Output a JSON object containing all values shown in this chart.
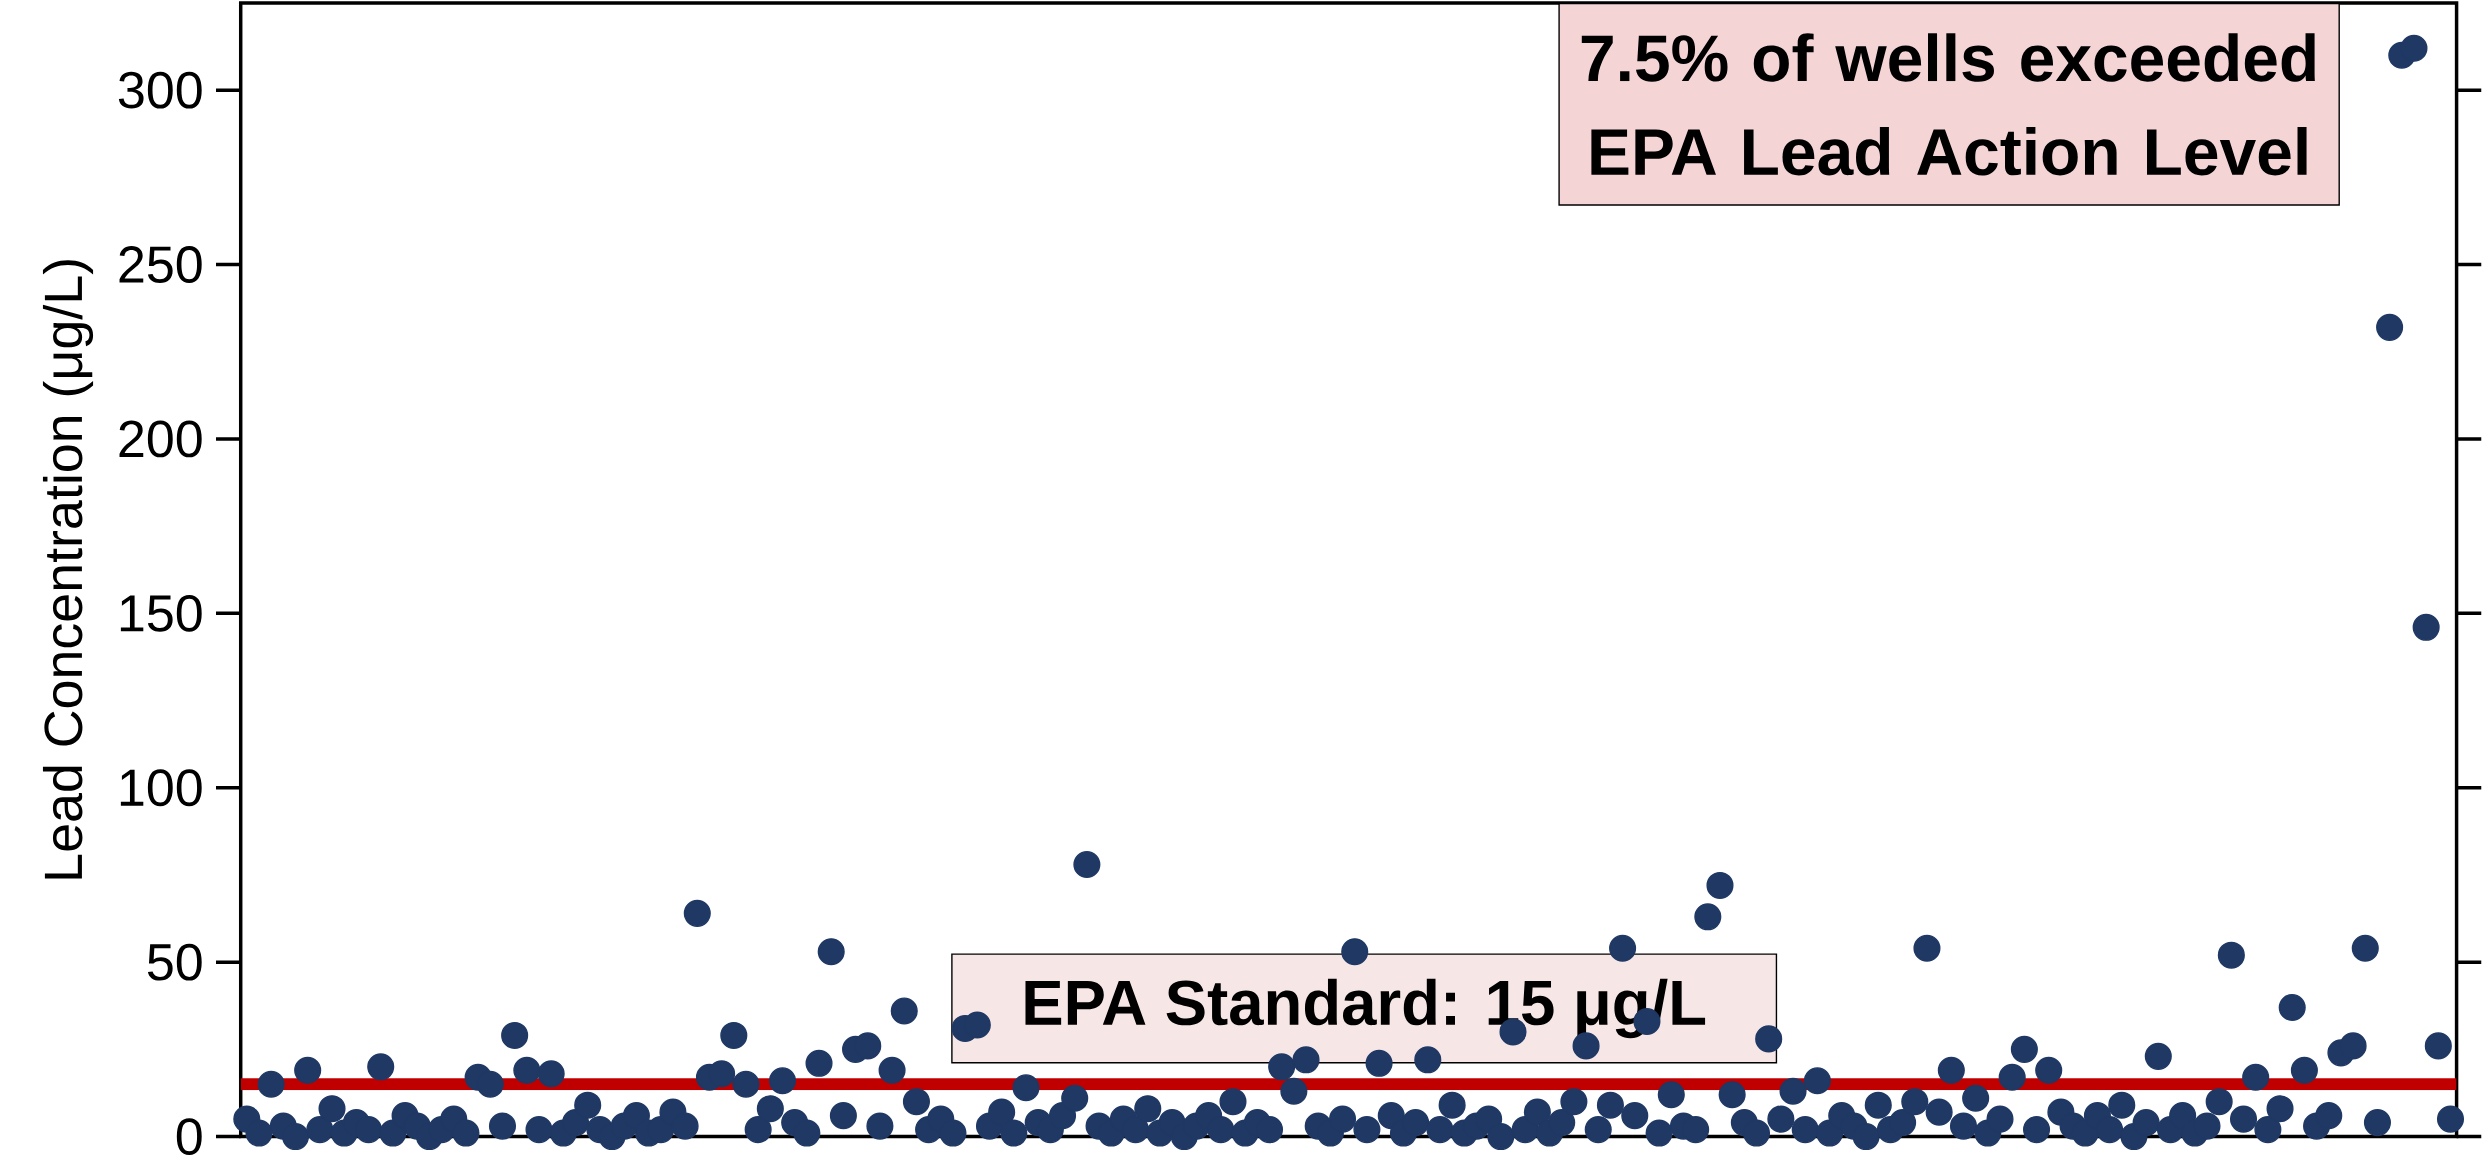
{
  "chart_data": {
    "type": "scatter",
    "ylabel": "Lead Concentration (μg/L)",
    "categories": [
      null,
      null,
      null,
      null,
      null,
      null,
      null,
      null,
      null,
      null,
      null,
      null,
      null,
      null,
      null,
      null,
      null,
      null,
      null,
      null,
      null,
      null,
      null,
      null,
      null,
      null,
      null,
      null,
      null,
      null,
      null,
      null,
      null,
      null,
      null,
      null,
      null,
      null,
      null,
      null,
      null,
      null,
      null,
      null,
      null,
      null,
      null,
      null,
      null,
      null,
      null,
      null,
      null,
      null,
      null,
      null,
      null,
      null,
      null,
      null,
      null,
      null,
      null,
      null,
      null,
      null,
      null,
      null,
      null,
      null,
      null,
      null,
      null,
      null,
      null,
      null,
      null,
      null,
      null,
      null,
      null,
      null,
      null,
      null,
      null,
      null,
      null,
      null,
      null,
      null,
      null,
      null,
      null,
      null,
      null,
      null,
      null,
      null,
      null,
      null,
      null,
      null,
      null,
      null,
      null,
      null,
      null,
      null,
      null,
      null,
      null,
      null,
      null,
      null,
      null,
      null,
      null,
      null,
      null,
      null,
      null,
      null,
      null,
      null,
      null,
      null,
      null,
      null,
      null,
      null,
      null,
      null,
      null,
      null,
      null,
      null,
      null,
      null,
      null,
      null,
      null,
      null,
      null,
      null,
      null,
      null,
      null,
      null,
      null,
      null,
      null,
      null,
      null,
      null,
      null,
      null,
      null,
      null,
      null,
      null,
      null,
      null,
      null,
      null,
      null,
      null,
      null,
      null,
      null,
      null,
      null,
      null,
      null,
      null,
      null,
      null,
      null,
      null,
      null,
      null,
      null,
      null
    ],
    "values": [
      5,
      1,
      15,
      3,
      0,
      19,
      2,
      8,
      1,
      4,
      2,
      20,
      1,
      6,
      3,
      0,
      2,
      5,
      1,
      17,
      15,
      3,
      29,
      19,
      2,
      18,
      1,
      4,
      9,
      2,
      0,
      3,
      6,
      1,
      2,
      7,
      3,
      64,
      17,
      18,
      29,
      15,
      2,
      8,
      16,
      4,
      1,
      21,
      53,
      6,
      25,
      26,
      3,
      19,
      36,
      10,
      2,
      5,
      1,
      31,
      32,
      3,
      7,
      1,
      14,
      4,
      2,
      6,
      11,
      78,
      3,
      1,
      5,
      2,
      8,
      1,
      4,
      0,
      3,
      6,
      2,
      10,
      1,
      4,
      2,
      20,
      13,
      22,
      3,
      1,
      5,
      53,
      2,
      21,
      6,
      1,
      4,
      22,
      2,
      9,
      1,
      3,
      5,
      0,
      30,
      2,
      7,
      1,
      4,
      10,
      26,
      2,
      9,
      54,
      6,
      33,
      1,
      12,
      3,
      2,
      63,
      72,
      12,
      4,
      1,
      28,
      5,
      13,
      2,
      16,
      1,
      6,
      3,
      0,
      9,
      2,
      4,
      10,
      54,
      7,
      19,
      3,
      11,
      1,
      5,
      17,
      25,
      2,
      19,
      7,
      3,
      1,
      6,
      2,
      9,
      0,
      4,
      23,
      2,
      6,
      1,
      3,
      10,
      52,
      5,
      17,
      2,
      8,
      37,
      19,
      3,
      6,
      24,
      26,
      54,
      4,
      232,
      310,
      312,
      146,
      26,
      5
    ],
    "color": "#1f3864",
    "ylim": [
      0,
      325
    ],
    "yticks": [
      0,
      50,
      100,
      150,
      200,
      250,
      300
    ],
    "ref_lines": [
      {
        "axis": "y",
        "value": 15,
        "label": "EPA Standard: 15 μg/L",
        "color": "#c00000"
      }
    ],
    "annotations": [
      "7.5% of wells exceeded EPA Lead Action Level"
    ]
  }
}
